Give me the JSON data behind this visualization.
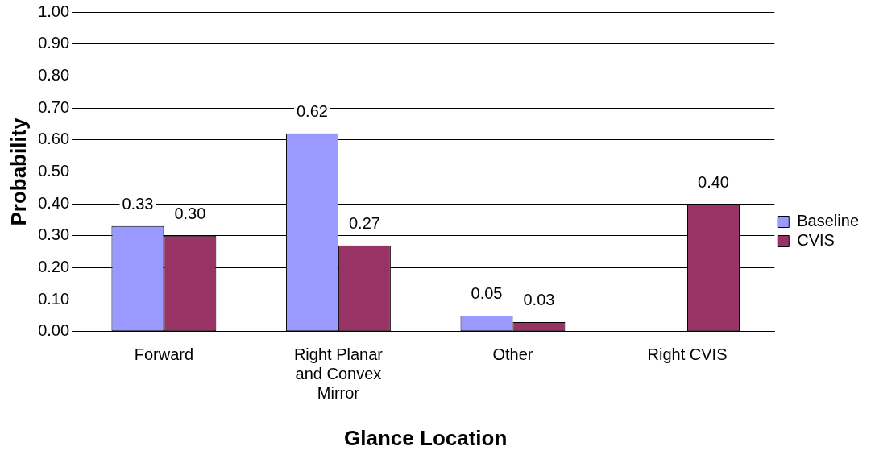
{
  "chart_data": {
    "type": "bar",
    "xlabel": "Glance Location",
    "ylabel": "Probability",
    "categories": [
      "Forward",
      "Right Planar and Convex Mirror",
      "Other",
      "Right CVIS"
    ],
    "series": [
      {
        "name": "Baseline",
        "color": "#9999ff",
        "values": [
          0.33,
          0.62,
          0.05,
          null
        ],
        "value_labels": [
          "0.33",
          "0.62",
          "0.05",
          null
        ]
      },
      {
        "name": "CVIS",
        "color": "#993366",
        "values": [
          0.3,
          0.27,
          0.03,
          0.4
        ],
        "value_labels": [
          "0.30",
          "0.27",
          "0.03",
          "0.40"
        ]
      }
    ],
    "ylim": [
      0,
      1
    ],
    "yticks": [
      {
        "value": 0,
        "label": "0.00"
      },
      {
        "value": 0.1,
        "label": "0.10"
      },
      {
        "value": 0.2,
        "label": "0.20"
      },
      {
        "value": 0.3,
        "label": "0.30"
      },
      {
        "value": 0.4,
        "label": "0.40"
      },
      {
        "value": 0.5,
        "label": "0.50"
      },
      {
        "value": 0.6,
        "label": "0.60"
      },
      {
        "value": 0.7,
        "label": "0.70"
      },
      {
        "value": 0.8,
        "label": "0.80"
      },
      {
        "value": 0.9,
        "label": "0.90"
      },
      {
        "value": 1,
        "label": "1.00"
      }
    ],
    "grid": "y",
    "legend": "right"
  }
}
